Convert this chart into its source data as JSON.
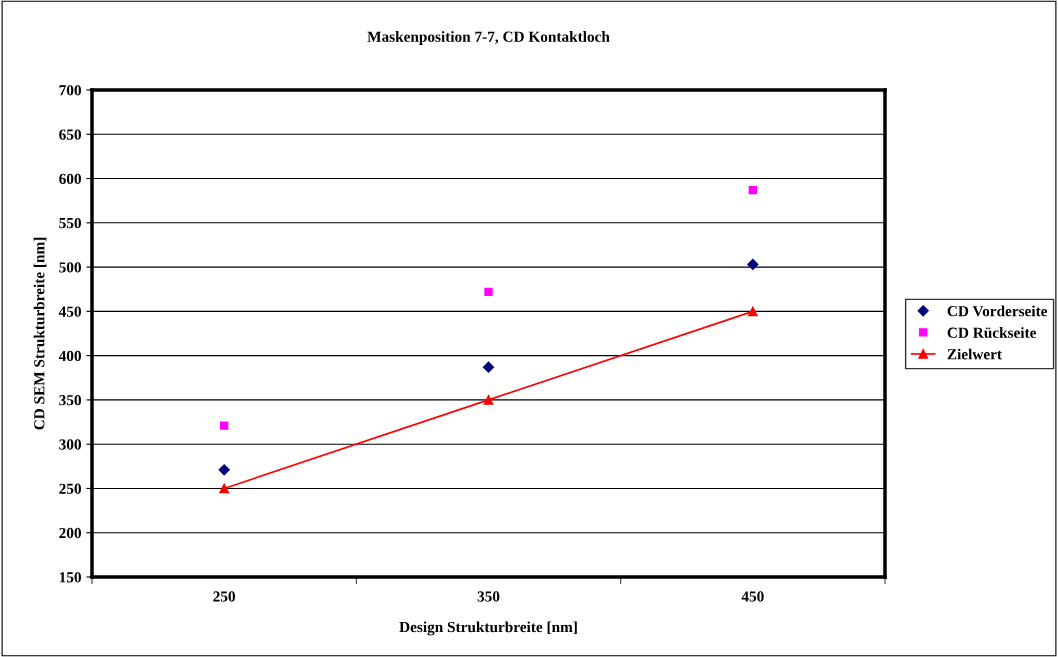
{
  "chart_data": {
    "type": "scatter",
    "title": "Maskenposition 7-7, CD Kontaktloch",
    "xlabel": "Design Strukturbreite [nm]",
    "ylabel": "CD SEM Strukturbreite [nm]",
    "categories": [
      "250",
      "350",
      "450"
    ],
    "series": [
      {
        "name": "CD Vorderseite",
        "color": "#000080",
        "marker": "diamond",
        "values": [
          271,
          387,
          503
        ]
      },
      {
        "name": "CD Rückseite",
        "color": "#ff00ff",
        "marker": "square",
        "values": [
          321,
          472,
          587
        ]
      },
      {
        "name": "Zielwert",
        "type": "line",
        "color": "#ff0000",
        "marker": "triangle",
        "line_style": "solid",
        "values": [
          250,
          350,
          450
        ]
      }
    ],
    "ylim": [
      150,
      700
    ],
    "yticks": [
      150,
      200,
      250,
      300,
      350,
      400,
      450,
      500,
      550,
      600,
      650,
      700
    ],
    "grid": "y",
    "legend": "right"
  }
}
